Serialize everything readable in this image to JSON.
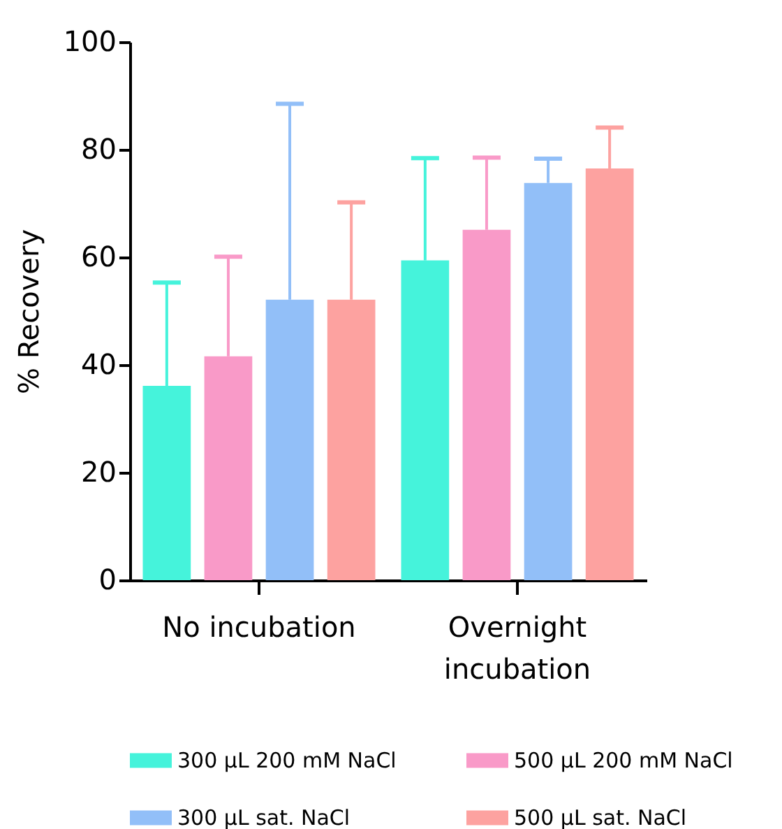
{
  "chart_data": {
    "type": "bar",
    "ylabel": "% Recovery",
    "categories": [
      "No incubation",
      "Overnight incubation"
    ],
    "series": [
      {
        "name": "300 µL 200 mM NaCl",
        "color": "#45f3db",
        "values": [
          36.1,
          59.4
        ],
        "errors": [
          [
            36.1,
            55.3
          ],
          [
            59.4,
            78.4
          ]
        ]
      },
      {
        "name": "500 µL 200 mM NaCl",
        "color": "#f99ac8",
        "values": [
          41.6,
          65.1
        ],
        "errors": [
          [
            41.6,
            60.1
          ],
          [
            65.1,
            78.5
          ]
        ]
      },
      {
        "name": "300 µL sat. NaCl",
        "color": "#92bff8",
        "values": [
          52.1,
          73.8
        ],
        "errors": [
          [
            52.1,
            88.5
          ],
          [
            73.8,
            78.3
          ]
        ]
      },
      {
        "name": "500 µL sat. NaCl",
        "color": "#fda2a0",
        "values": [
          52.1,
          76.5
        ],
        "errors": [
          [
            52.1,
            70.2
          ],
          [
            76.5,
            84.1
          ]
        ]
      }
    ],
    "ylim": [
      0,
      100
    ],
    "yticks": [
      0,
      20,
      40,
      60,
      80,
      100
    ],
    "grid": false,
    "legend": "bottom"
  }
}
